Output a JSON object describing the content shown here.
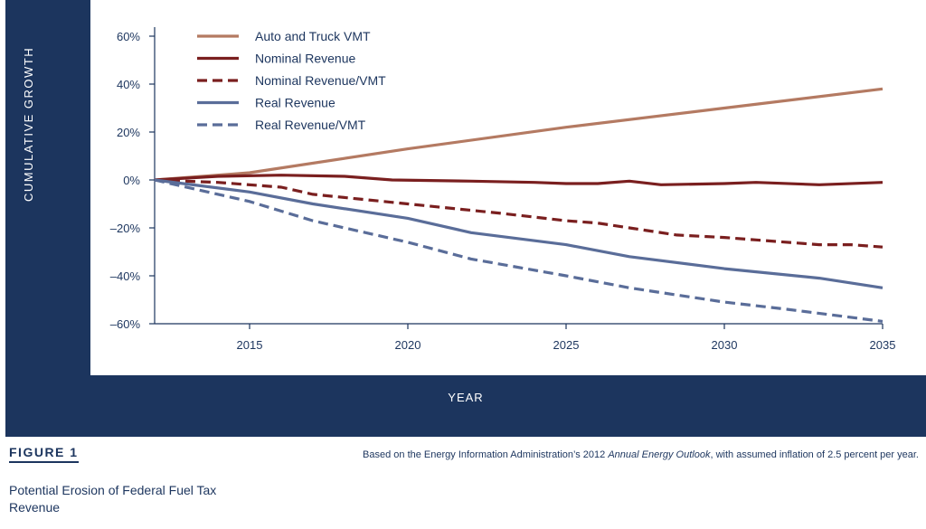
{
  "figure": {
    "label": "FIGURE 1",
    "title": "Potential Erosion of Federal Fuel Tax Revenue",
    "source_prefix": "Based on the Energy Information Administration’s 2012 ",
    "source_italic": "Annual Energy Outlook",
    "source_suffix": ", with assumed inflation of 2.5 percent per year."
  },
  "colors": {
    "frame": "#1c355e",
    "auto_vmt": "#b47a62",
    "nominal": "#7a1f1f",
    "real": "#5a6d99"
  },
  "chart_data": {
    "type": "line",
    "title": "",
    "xlabel": "YEAR",
    "ylabel": "CUMULATIVE GROWTH",
    "xlim": [
      2012,
      2035
    ],
    "ylim": [
      -60,
      60
    ],
    "x_ticks": [
      "2015",
      "2020",
      "2025",
      "2030",
      "2035"
    ],
    "y_ticks": [
      "60%",
      "40%",
      "20%",
      "0%",
      "–20%",
      "–40%",
      "–60%"
    ],
    "legend_position": "top-left",
    "series": [
      {
        "name": "Auto and Truck VMT",
        "style": "solid",
        "color": "#b47a62",
        "x": [
          2012,
          2015,
          2020,
          2025,
          2030,
          2035
        ],
        "y": [
          0,
          3,
          13,
          22,
          30,
          38
        ]
      },
      {
        "name": "Nominal Revenue",
        "style": "solid",
        "color": "#7a1f1f",
        "x": [
          2012,
          2014,
          2016,
          2018,
          2019.5,
          2022,
          2024,
          2025,
          2026,
          2027,
          2028,
          2030,
          2031,
          2033,
          2035
        ],
        "y": [
          0,
          1.5,
          2,
          1.5,
          0,
          -0.5,
          -1,
          -1.5,
          -1.5,
          -0.5,
          -2,
          -1.5,
          -1,
          -2,
          -1
        ]
      },
      {
        "name": "Nominal Revenue/VMT",
        "style": "dashed",
        "color": "#7a1f1f",
        "x": [
          2012,
          2014,
          2016,
          2017,
          2020,
          2023,
          2025,
          2026,
          2027,
          2028.5,
          2030,
          2031,
          2033,
          2034,
          2035
        ],
        "y": [
          0,
          -1,
          -3,
          -6,
          -10,
          -14,
          -17,
          -18,
          -20,
          -23,
          -24,
          -25,
          -27,
          -27,
          -28
        ]
      },
      {
        "name": "Real Revenue",
        "style": "solid",
        "color": "#5a6d99",
        "x": [
          2012,
          2015,
          2017,
          2020,
          2022,
          2025,
          2027,
          2030,
          2033,
          2035
        ],
        "y": [
          0,
          -5,
          -10,
          -16,
          -22,
          -27,
          -32,
          -37,
          -41,
          -45
        ]
      },
      {
        "name": "Real Revenue/VMT",
        "style": "dashed",
        "color": "#5a6d99",
        "x": [
          2012,
          2015,
          2017,
          2020,
          2022,
          2025,
          2027,
          2030,
          2032,
          2035
        ],
        "y": [
          0,
          -9,
          -17,
          -26,
          -33,
          -40,
          -45,
          -51,
          -54,
          -59
        ]
      }
    ]
  }
}
